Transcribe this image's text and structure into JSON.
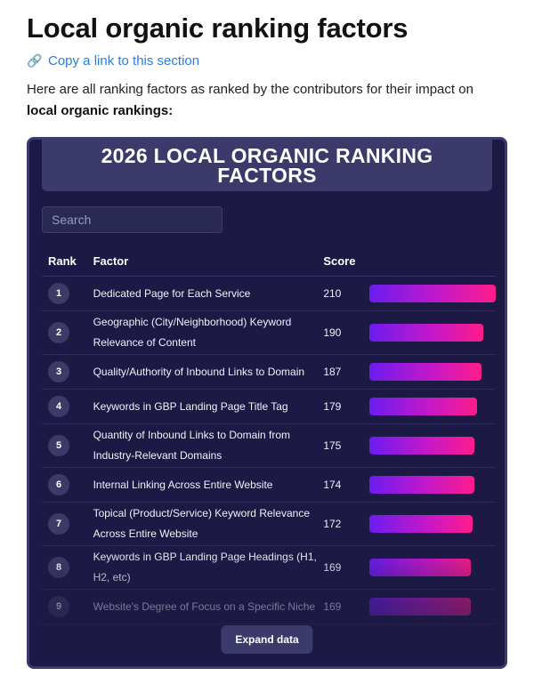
{
  "section": {
    "title": "Local organic ranking factors",
    "copy_link": "Copy a link to this section",
    "copy_link_icon": "link-icon",
    "intro_prefix": "Here are all ranking factors as ranked by the contributors for their impact on ",
    "intro_bold": "local organic rankings:"
  },
  "card": {
    "banner_title": "2026 LOCAL ORGANIC RANKING FACTORS",
    "search_placeholder": "Search",
    "columns": {
      "rank": "Rank",
      "factor": "Factor",
      "score": "Score"
    },
    "max_score": 210,
    "rows": [
      {
        "rank": "1",
        "factor": "Dedicated Page for Each Service",
        "score": 210
      },
      {
        "rank": "2",
        "factor": "Geographic (City/Neighborhood) Keyword Relevance of Content",
        "score": 190
      },
      {
        "rank": "3",
        "factor": "Quality/Authority of Inbound Links to Domain",
        "score": 187
      },
      {
        "rank": "4",
        "factor": "Keywords in GBP Landing Page Title Tag",
        "score": 179
      },
      {
        "rank": "5",
        "factor": "Quantity of Inbound Links to Domain from Industry-Relevant Domains",
        "score": 175
      },
      {
        "rank": "6",
        "factor": "Internal Linking Across Entire Website",
        "score": 174
      },
      {
        "rank": "7",
        "factor": "Topical (Product/Service) Keyword Relevance Across Entire Website",
        "score": 172
      },
      {
        "rank": "8",
        "factor": "Keywords in GBP Landing Page Headings (H1, H2, etc)",
        "score": 169
      },
      {
        "rank": "9",
        "factor": "Website's Degree of Focus on a Specific Niche",
        "score": 169
      }
    ],
    "expand_label": "Expand data",
    "colors": {
      "background": "#1c1a44",
      "bar_start": "#6a1cf0",
      "bar_end": "#ff1c8a"
    }
  }
}
